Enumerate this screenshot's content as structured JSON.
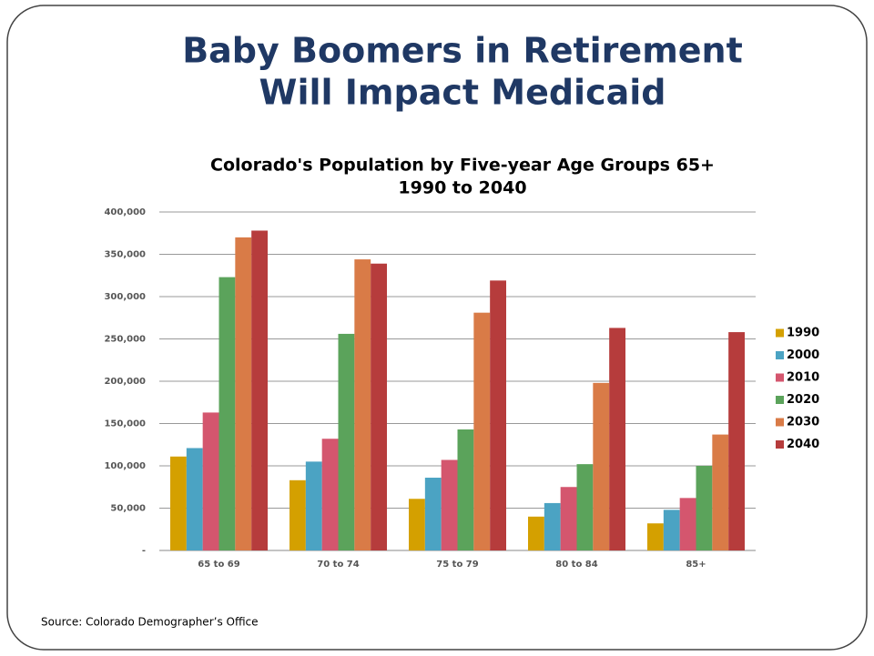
{
  "slide": {
    "title": [
      "Baby Boomers in Retirement",
      "Will Impact Medicaid"
    ],
    "source": "Source: Colorado Demographer’s Office"
  },
  "chart_data": {
    "type": "bar",
    "title": [
      "Colorado's Population by Five-year Age Groups 65+",
      "1990 to 2040"
    ],
    "categories": [
      "65 to 69",
      "70 to 74",
      "75 to 79",
      "80 to 84",
      "85+"
    ],
    "series": [
      {
        "name": "1990",
        "color": "#d4a000",
        "values": [
          111000,
          83000,
          61000,
          40000,
          32000
        ]
      },
      {
        "name": "2000",
        "color": "#4ba3c3",
        "values": [
          121000,
          105000,
          86000,
          56000,
          48000
        ]
      },
      {
        "name": "2010",
        "color": "#d4566e",
        "values": [
          163000,
          132000,
          107000,
          75000,
          62000
        ]
      },
      {
        "name": "2020",
        "color": "#5ba35b",
        "values": [
          323000,
          256000,
          143000,
          102000,
          100000
        ]
      },
      {
        "name": "2030",
        "color": "#d97b47",
        "values": [
          370000,
          344000,
          281000,
          198000,
          137000
        ]
      },
      {
        "name": "2040",
        "color": "#b63c3c",
        "values": [
          378000,
          339000,
          319000,
          263000,
          258000
        ]
      }
    ],
    "ylim": [
      0,
      400000
    ],
    "yticks": [
      {
        "value": 0,
        "label": "-"
      },
      {
        "value": 50000,
        "label": "50,000"
      },
      {
        "value": 100000,
        "label": "100,000"
      },
      {
        "value": 150000,
        "label": "150,000"
      },
      {
        "value": 200000,
        "label": "200,000"
      },
      {
        "value": 250000,
        "label": "250,000"
      },
      {
        "value": 300000,
        "label": "300,000"
      },
      {
        "value": 350000,
        "label": "350,000"
      },
      {
        "value": 400000,
        "label": "400,000"
      }
    ],
    "grid": true,
    "legend": "right"
  }
}
